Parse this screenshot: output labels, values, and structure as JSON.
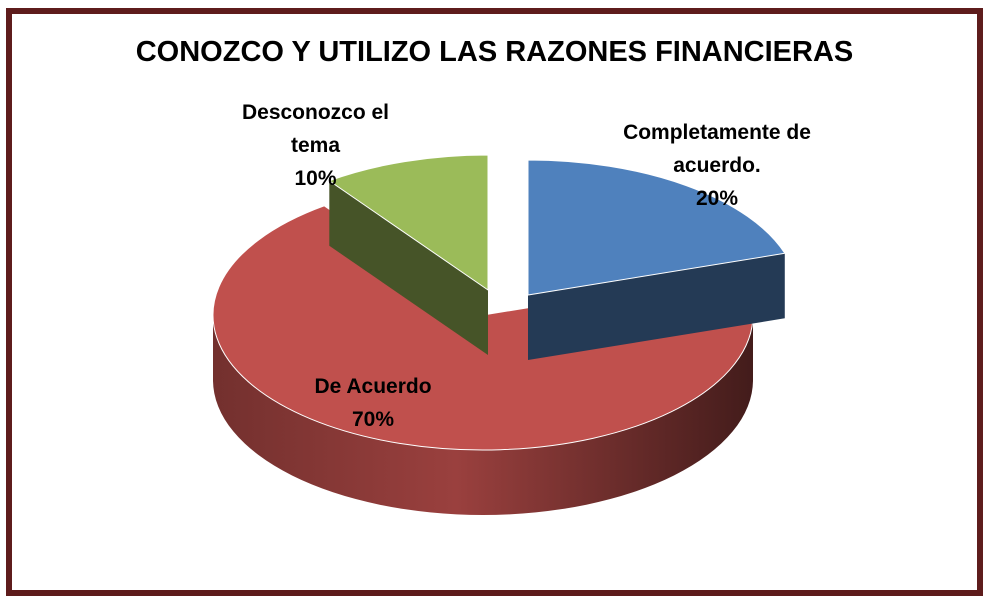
{
  "chart_data": {
    "type": "pie",
    "title": "CONOZCO Y UTILIZO LAS RAZONES FINANCIERAS",
    "categories": [
      "Completamente de acuerdo.",
      "De Acuerdo",
      "Desconozco el tema"
    ],
    "values": [
      20,
      70,
      10
    ],
    "value_labels": [
      "20%",
      "70%",
      "10%"
    ],
    "colors": [
      "#4f81bd",
      "#c0504d",
      "#9bbb59"
    ]
  }
}
